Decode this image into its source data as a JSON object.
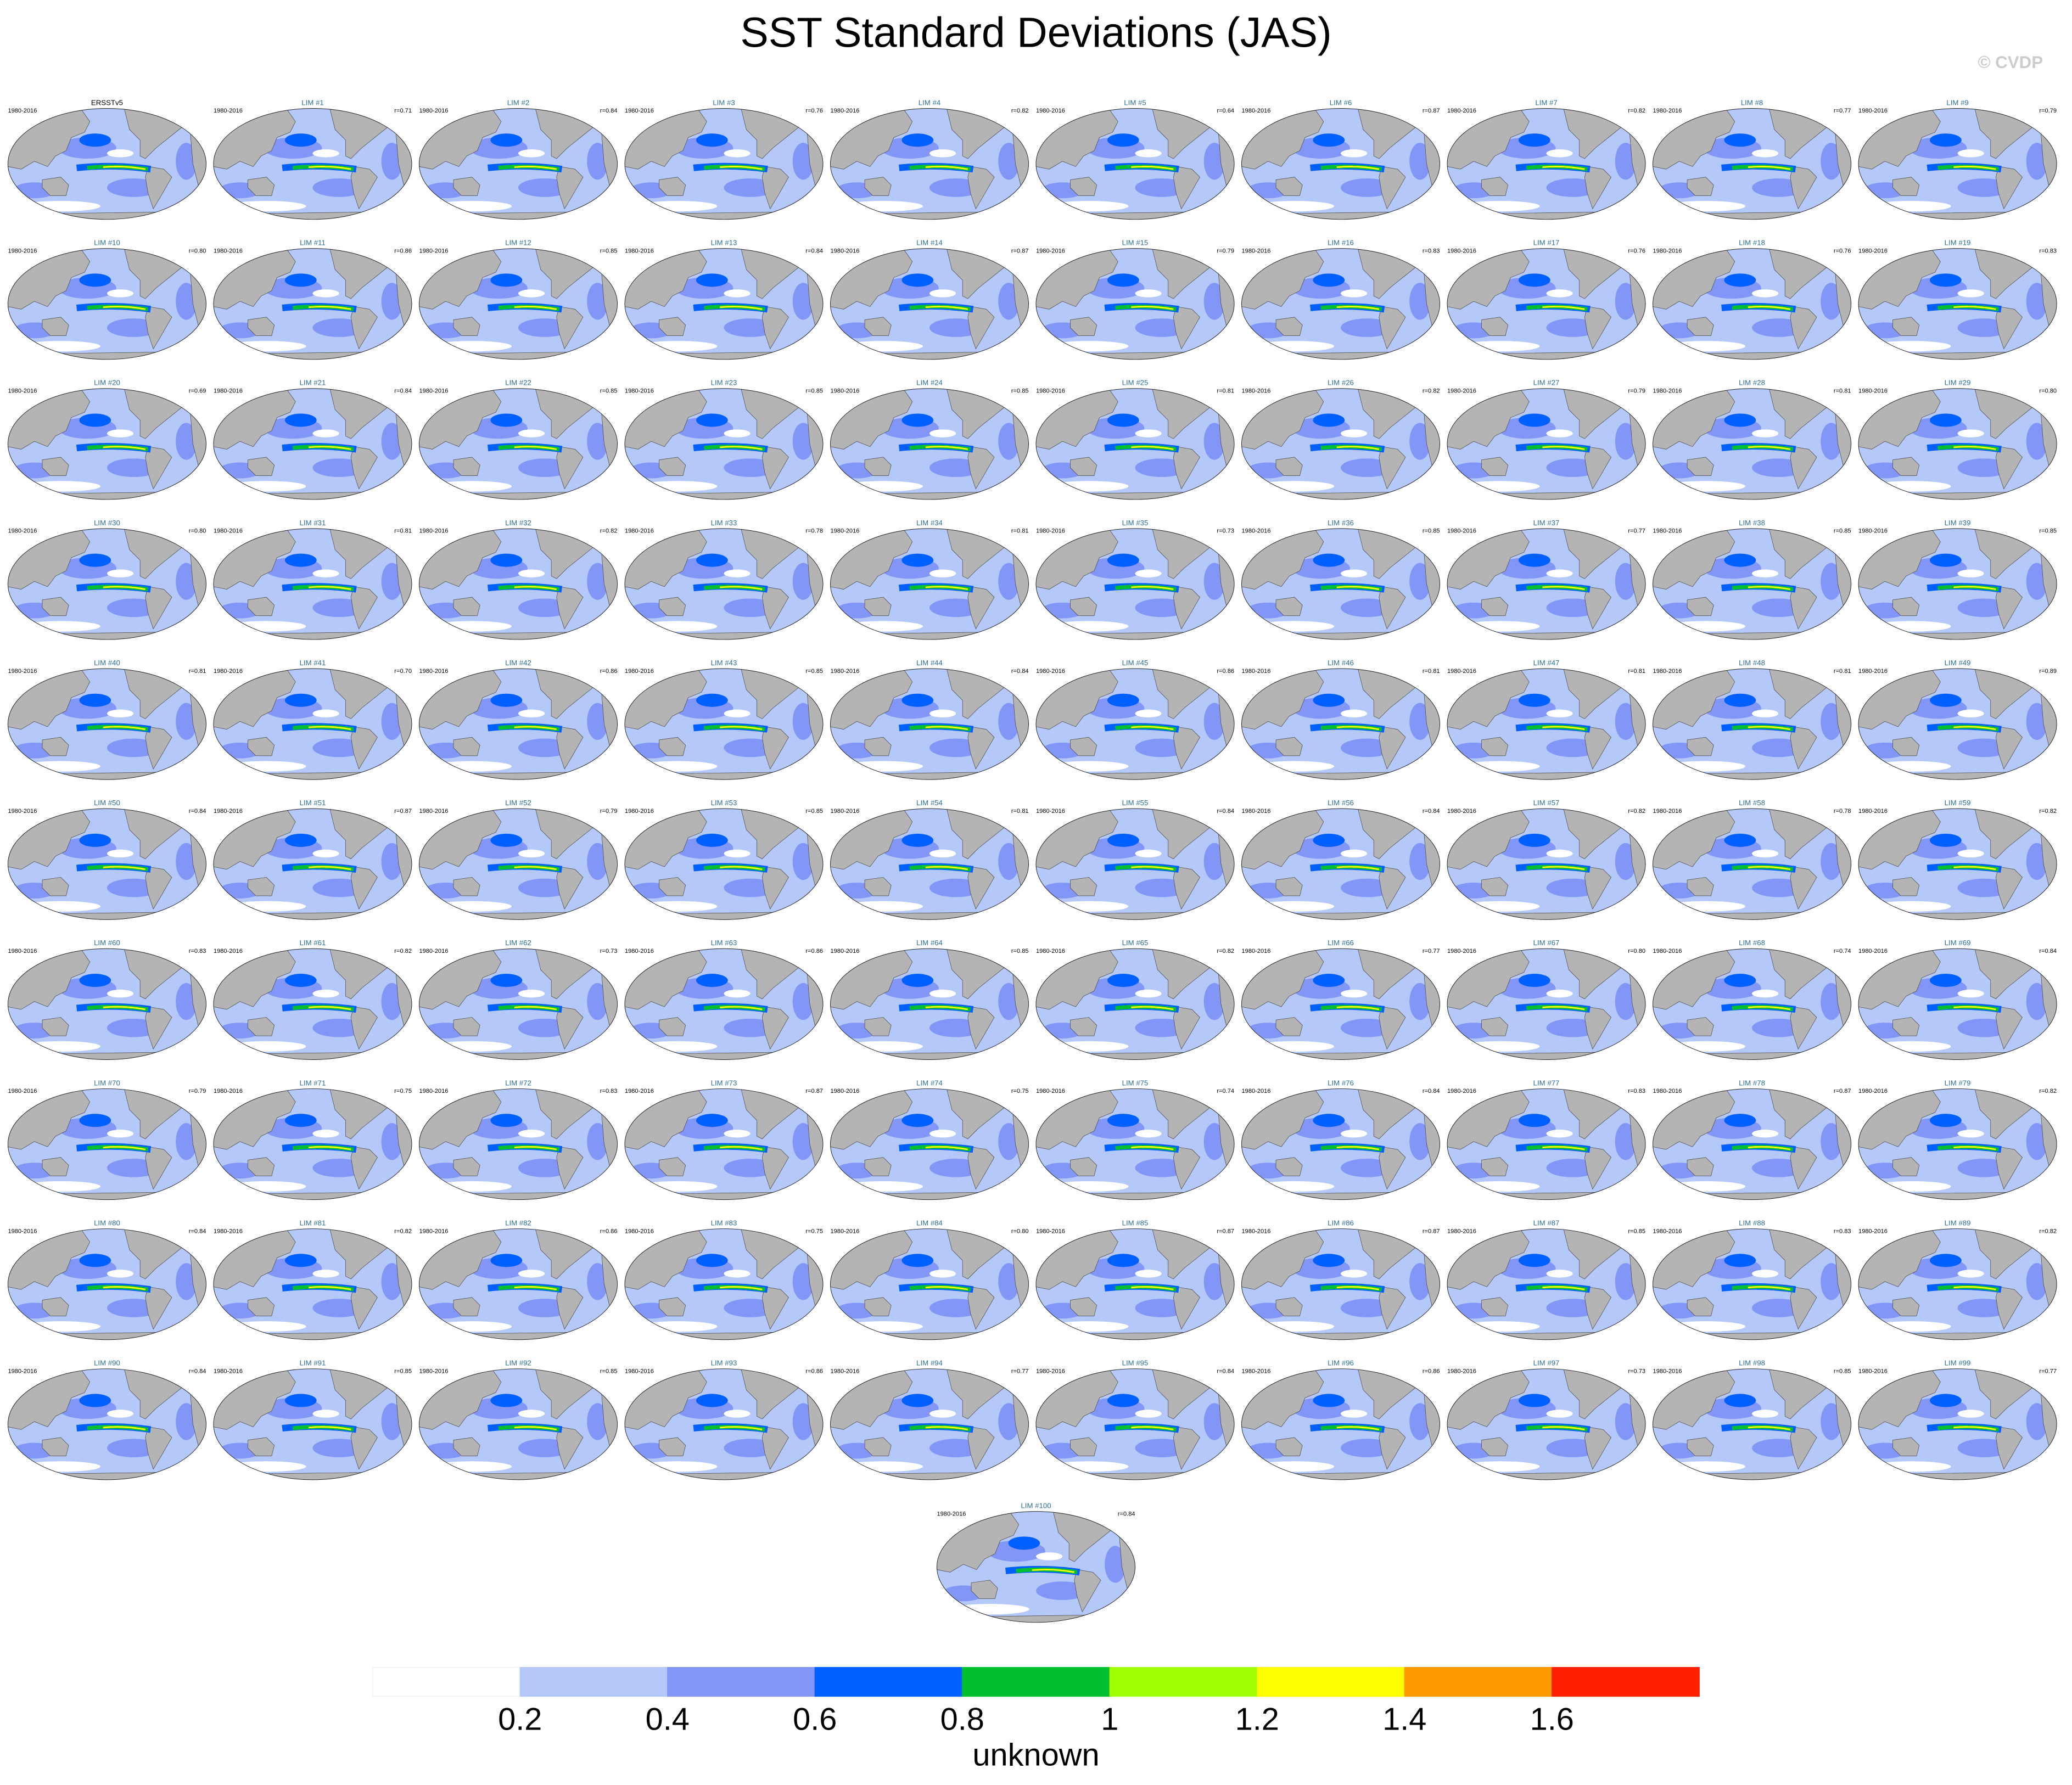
{
  "chart_data": {
    "type": "map-panels",
    "title": "SST Standard Deviations (JAS)",
    "credit": "© CVDP",
    "panels": [
      {
        "period": "1980-2016",
        "name": "ERSSTv5"
      },
      {
        "period": "1980-2016",
        "name": "LIM #1",
        "r": "r=0.71"
      },
      {
        "period": "1980-2016",
        "name": "LIM #2",
        "r": "r=0.84"
      },
      {
        "period": "1980-2016",
        "name": "LIM #3",
        "r": "r=0.76"
      },
      {
        "period": "1980-2016",
        "name": "LIM #4",
        "r": "r=0.82"
      },
      {
        "period": "1980-2016",
        "name": "LIM #5",
        "r": "r=0.64"
      },
      {
        "period": "1980-2016",
        "name": "LIM #6",
        "r": "r=0.87"
      },
      {
        "period": "1980-2016",
        "name": "LIM #7",
        "r": "r=0.82"
      },
      {
        "period": "1980-2016",
        "name": "LIM #8",
        "r": "r=0.77"
      },
      {
        "period": "1980-2016",
        "name": "LIM #9",
        "r": "r=0.79"
      },
      {
        "period": "1980-2016",
        "name": "LIM #10",
        "r": "r=0.80"
      },
      {
        "period": "1980-2016",
        "name": "LIM #11",
        "r": "r=0.86"
      },
      {
        "period": "1980-2016",
        "name": "LIM #12",
        "r": "r=0.85"
      },
      {
        "period": "1980-2016",
        "name": "LIM #13",
        "r": "r=0.84"
      },
      {
        "period": "1980-2016",
        "name": "LIM #14",
        "r": "r=0.87"
      },
      {
        "period": "1980-2016",
        "name": "LIM #15",
        "r": "r=0.79"
      },
      {
        "period": "1980-2016",
        "name": "LIM #16",
        "r": "r=0.83"
      },
      {
        "period": "1980-2016",
        "name": "LIM #17",
        "r": "r=0.76"
      },
      {
        "period": "1980-2016",
        "name": "LIM #18",
        "r": "r=0.76"
      },
      {
        "period": "1980-2016",
        "name": "LIM #19",
        "r": "r=0.83"
      },
      {
        "period": "1980-2016",
        "name": "LIM #20",
        "r": "r=0.69"
      },
      {
        "period": "1980-2016",
        "name": "LIM #21",
        "r": "r=0.84"
      },
      {
        "period": "1980-2016",
        "name": "LIM #22",
        "r": "r=0.85"
      },
      {
        "period": "1980-2016",
        "name": "LIM #23",
        "r": "r=0.85"
      },
      {
        "period": "1980-2016",
        "name": "LIM #24",
        "r": "r=0.85"
      },
      {
        "period": "1980-2016",
        "name": "LIM #25",
        "r": "r=0.81"
      },
      {
        "period": "1980-2016",
        "name": "LIM #26",
        "r": "r=0.82"
      },
      {
        "period": "1980-2016",
        "name": "LIM #27",
        "r": "r=0.79"
      },
      {
        "period": "1980-2016",
        "name": "LIM #28",
        "r": "r=0.81"
      },
      {
        "period": "1980-2016",
        "name": "LIM #29",
        "r": "r=0.80"
      },
      {
        "period": "1980-2016",
        "name": "LIM #30",
        "r": "r=0.80"
      },
      {
        "period": "1980-2016",
        "name": "LIM #31",
        "r": "r=0.81"
      },
      {
        "period": "1980-2016",
        "name": "LIM #32",
        "r": "r=0.82"
      },
      {
        "period": "1980-2016",
        "name": "LIM #33",
        "r": "r=0.78"
      },
      {
        "period": "1980-2016",
        "name": "LIM #34",
        "r": "r=0.81"
      },
      {
        "period": "1980-2016",
        "name": "LIM #35",
        "r": "r=0.73"
      },
      {
        "period": "1980-2016",
        "name": "LIM #36",
        "r": "r=0.85"
      },
      {
        "period": "1980-2016",
        "name": "LIM #37",
        "r": "r=0.77"
      },
      {
        "period": "1980-2016",
        "name": "LIM #38",
        "r": "r=0.85"
      },
      {
        "period": "1980-2016",
        "name": "LIM #39",
        "r": "r=0.85"
      },
      {
        "period": "1980-2016",
        "name": "LIM #40",
        "r": "r=0.81"
      },
      {
        "period": "1980-2016",
        "name": "LIM #41",
        "r": "r=0.70"
      },
      {
        "period": "1980-2016",
        "name": "LIM #42",
        "r": "r=0.86"
      },
      {
        "period": "1980-2016",
        "name": "LIM #43",
        "r": "r=0.85"
      },
      {
        "period": "1980-2016",
        "name": "LIM #44",
        "r": "r=0.84"
      },
      {
        "period": "1980-2016",
        "name": "LIM #45",
        "r": "r=0.86"
      },
      {
        "period": "1980-2016",
        "name": "LIM #46",
        "r": "r=0.81"
      },
      {
        "period": "1980-2016",
        "name": "LIM #47",
        "r": "r=0.81"
      },
      {
        "period": "1980-2016",
        "name": "LIM #48",
        "r": "r=0.81"
      },
      {
        "period": "1980-2016",
        "name": "LIM #49",
        "r": "r=0.89"
      },
      {
        "period": "1980-2016",
        "name": "LIM #50",
        "r": "r=0.84"
      },
      {
        "period": "1980-2016",
        "name": "LIM #51",
        "r": "r=0.87"
      },
      {
        "period": "1980-2016",
        "name": "LIM #52",
        "r": "r=0.79"
      },
      {
        "period": "1980-2016",
        "name": "LIM #53",
        "r": "r=0.85"
      },
      {
        "period": "1980-2016",
        "name": "LIM #54",
        "r": "r=0.81"
      },
      {
        "period": "1980-2016",
        "name": "LIM #55",
        "r": "r=0.84"
      },
      {
        "period": "1980-2016",
        "name": "LIM #56",
        "r": "r=0.84"
      },
      {
        "period": "1980-2016",
        "name": "LIM #57",
        "r": "r=0.82"
      },
      {
        "period": "1980-2016",
        "name": "LIM #58",
        "r": "r=0.78"
      },
      {
        "period": "1980-2016",
        "name": "LIM #59",
        "r": "r=0.82"
      },
      {
        "period": "1980-2016",
        "name": "LIM #60",
        "r": "r=0.83"
      },
      {
        "period": "1980-2016",
        "name": "LIM #61",
        "r": "r=0.82"
      },
      {
        "period": "1980-2016",
        "name": "LIM #62",
        "r": "r=0.73"
      },
      {
        "period": "1980-2016",
        "name": "LIM #63",
        "r": "r=0.86"
      },
      {
        "period": "1980-2016",
        "name": "LIM #64",
        "r": "r=0.85"
      },
      {
        "period": "1980-2016",
        "name": "LIM #65",
        "r": "r=0.82"
      },
      {
        "period": "1980-2016",
        "name": "LIM #66",
        "r": "r=0.77"
      },
      {
        "period": "1980-2016",
        "name": "LIM #67",
        "r": "r=0.80"
      },
      {
        "period": "1980-2016",
        "name": "LIM #68",
        "r": "r=0.74"
      },
      {
        "period": "1980-2016",
        "name": "LIM #69",
        "r": "r=0.84"
      },
      {
        "period": "1980-2016",
        "name": "LIM #70",
        "r": "r=0.79"
      },
      {
        "period": "1980-2016",
        "name": "LIM #71",
        "r": "r=0.75"
      },
      {
        "period": "1980-2016",
        "name": "LIM #72",
        "r": "r=0.83"
      },
      {
        "period": "1980-2016",
        "name": "LIM #73",
        "r": "r=0.87"
      },
      {
        "period": "1980-2016",
        "name": "LIM #74",
        "r": "r=0.75"
      },
      {
        "period": "1980-2016",
        "name": "LIM #75",
        "r": "r=0.74"
      },
      {
        "period": "1980-2016",
        "name": "LIM #76",
        "r": "r=0.84"
      },
      {
        "period": "1980-2016",
        "name": "LIM #77",
        "r": "r=0.83"
      },
      {
        "period": "1980-2016",
        "name": "LIM #78",
        "r": "r=0.87"
      },
      {
        "period": "1980-2016",
        "name": "LIM #79",
        "r": "r=0.82"
      },
      {
        "period": "1980-2016",
        "name": "LIM #80",
        "r": "r=0.84"
      },
      {
        "period": "1980-2016",
        "name": "LIM #81",
        "r": "r=0.82"
      },
      {
        "period": "1980-2016",
        "name": "LIM #82",
        "r": "r=0.86"
      },
      {
        "period": "1980-2016",
        "name": "LIM #83",
        "r": "r=0.75"
      },
      {
        "period": "1980-2016",
        "name": "LIM #84",
        "r": "r=0.80"
      },
      {
        "period": "1980-2016",
        "name": "LIM #85",
        "r": "r=0.87"
      },
      {
        "period": "1980-2016",
        "name": "LIM #86",
        "r": "r=0.87"
      },
      {
        "period": "1980-2016",
        "name": "LIM #87",
        "r": "r=0.85"
      },
      {
        "period": "1980-2016",
        "name": "LIM #88",
        "r": "r=0.83"
      },
      {
        "period": "1980-2016",
        "name": "LIM #89",
        "r": "r=0.82"
      },
      {
        "period": "1980-2016",
        "name": "LIM #90",
        "r": "r=0.84"
      },
      {
        "period": "1980-2016",
        "name": "LIM #91",
        "r": "r=0.85"
      },
      {
        "period": "1980-2016",
        "name": "LIM #92",
        "r": "r=0.85"
      },
      {
        "period": "1980-2016",
        "name": "LIM #93",
        "r": "r=0.86"
      },
      {
        "period": "1980-2016",
        "name": "LIM #94",
        "r": "r=0.77"
      },
      {
        "period": "1980-2016",
        "name": "LIM #95",
        "r": "r=0.84"
      },
      {
        "period": "1980-2016",
        "name": "LIM #96",
        "r": "r=0.86"
      },
      {
        "period": "1980-2016",
        "name": "LIM #97",
        "r": "r=0.73"
      },
      {
        "period": "1980-2016",
        "name": "LIM #98",
        "r": "r=0.85"
      },
      {
        "period": "1980-2016",
        "name": "LIM #99",
        "r": "r=0.77"
      },
      {
        "period": "1980-2016",
        "name": "LIM #100",
        "r": "r=0.84"
      }
    ],
    "colorbar": {
      "label": "unknown",
      "lim": [
        0,
        1.8
      ],
      "colors": [
        "#ffffff",
        "#b4c8fa",
        "#8296f8",
        "#0060ff",
        "#00c030",
        "#a0ff00",
        "#ffff00",
        "#ff9900",
        "#ff2000"
      ],
      "ticks": [
        0.2,
        0.4,
        0.6,
        0.8,
        1,
        1.2,
        1.4,
        1.6
      ]
    }
  }
}
